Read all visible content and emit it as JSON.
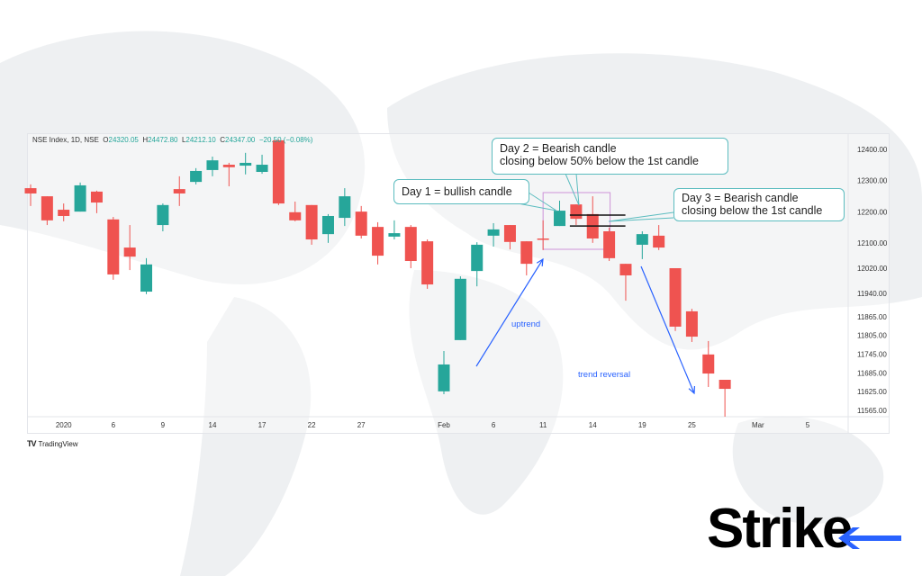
{
  "legend": {
    "symbol": "NSE Index, 1D, NSE",
    "open_label": "O",
    "open": "24320.05",
    "high_label": "H",
    "high": "24472.80",
    "low_label": "L",
    "low": "24212.10",
    "close_label": "C",
    "close": "24347.00",
    "change": "−20.50 (−0.08%)"
  },
  "branding": {
    "tradingview": "TradingView",
    "logo": "Strike"
  },
  "annotations": {
    "day1": "Day 1 = bullish candle",
    "day2_line1": "Day 2 = Bearish candle",
    "day2_line2": "closing below 50% below the 1st candle",
    "day3_line1": "Day 3 = Bearish candle",
    "day3_line2": "closing below the 1st candle",
    "uptrend": "uptrend",
    "reversal": "trend reversal"
  },
  "colors": {
    "up": "#26a69a",
    "down": "#ef5350",
    "arrow": "#2962ff",
    "callout_border": "#5bbcbf",
    "highlight_box": "#ce93d8"
  },
  "chart_data": {
    "type": "candlestick",
    "title": "NSE Index, 1D, NSE",
    "ylim": [
      11540,
      12440
    ],
    "yticks": [
      12400,
      12300,
      12200,
      12100,
      12020,
      11940,
      11865,
      11805,
      11745,
      11685,
      11625,
      11565
    ],
    "ytick_labels": [
      "12400.00",
      "12300.00",
      "12200.00",
      "12100.00",
      "12020.00",
      "11940.00",
      "11865.00",
      "11805.00",
      "11745.00",
      "11685.00",
      "11625.00",
      "11565.00"
    ],
    "xticks": [
      {
        "label": "2020",
        "index": 2
      },
      {
        "label": "6",
        "index": 5
      },
      {
        "label": "9",
        "index": 8
      },
      {
        "label": "14",
        "index": 11
      },
      {
        "label": "17",
        "index": 14
      },
      {
        "label": "22",
        "index": 17
      },
      {
        "label": "27",
        "index": 20
      },
      {
        "label": "Feb",
        "index": 25
      },
      {
        "label": "6",
        "index": 28
      },
      {
        "label": "11",
        "index": 31
      },
      {
        "label": "14",
        "index": 34
      },
      {
        "label": "19",
        "index": 37
      },
      {
        "label": "25",
        "index": 40
      },
      {
        "label": "Mar",
        "index": 44
      },
      {
        "label": "5",
        "index": 47
      }
    ],
    "candles": [
      [
        12276,
        12288,
        12219,
        12259
      ],
      [
        12250,
        12250,
        12158,
        12173
      ],
      [
        12207,
        12227,
        12170,
        12187
      ],
      [
        12201,
        12294,
        12201,
        12285
      ],
      [
        12265,
        12268,
        12196,
        12230
      ],
      [
        12176,
        12184,
        11983,
        12000
      ],
      [
        12086,
        12158,
        12014,
        12057
      ],
      [
        11945,
        12052,
        11937,
        12032
      ],
      [
        12158,
        12227,
        12138,
        12222
      ],
      [
        12273,
        12314,
        12219,
        12259
      ],
      [
        12296,
        12340,
        12288,
        12331
      ],
      [
        12334,
        12377,
        12314,
        12365
      ],
      [
        12351,
        12357,
        12282,
        12343
      ],
      [
        12348,
        12389,
        12320,
        12357
      ],
      [
        12328,
        12383,
        12322,
        12351
      ],
      [
        12429,
        12432,
        12222,
        12227
      ],
      [
        12199,
        12233,
        12170,
        12173
      ],
      [
        12222,
        12222,
        12095,
        12112
      ],
      [
        12129,
        12193,
        12101,
        12187
      ],
      [
        12181,
        12276,
        12155,
        12250
      ],
      [
        12201,
        12219,
        12115,
        12124
      ],
      [
        12152,
        12167,
        12032,
        12060
      ],
      [
        12121,
        12173,
        12112,
        12132
      ],
      [
        12152,
        12158,
        12020,
        12043
      ],
      [
        12106,
        12112,
        11954,
        11968
      ],
      [
        11626,
        11755,
        11617,
        11712
      ],
      [
        11790,
        11994,
        11790,
        11986
      ],
      [
        12011,
        12103,
        11962,
        12095
      ],
      [
        12124,
        12164,
        12089,
        12144
      ],
      [
        12158,
        12158,
        12080,
        12104
      ],
      [
        12106,
        12106,
        11997,
        12034
      ],
      [
        12115,
        12173,
        12078,
        12112
      ],
      [
        12155,
        12236,
        12155,
        12204
      ],
      [
        12224,
        12224,
        12158,
        12178
      ],
      [
        12193,
        12250,
        12101,
        12115
      ],
      [
        12138,
        12150,
        12043,
        12052
      ],
      [
        12034,
        12034,
        11916,
        11997
      ],
      [
        12095,
        12138,
        12049,
        12129
      ],
      [
        12124,
        12158,
        12078,
        12086
      ],
      [
        12020,
        12020,
        11819,
        11833
      ],
      [
        11882,
        11890,
        11784,
        11801
      ],
      [
        11744,
        11787,
        11640,
        11683
      ],
      [
        11663,
        11663,
        11545,
        11634
      ]
    ],
    "candle_format": [
      "open",
      "high",
      "low",
      "close"
    ],
    "reference_levels": [
      12190,
      12155
    ],
    "highlight_candles": [
      31,
      35
    ]
  }
}
